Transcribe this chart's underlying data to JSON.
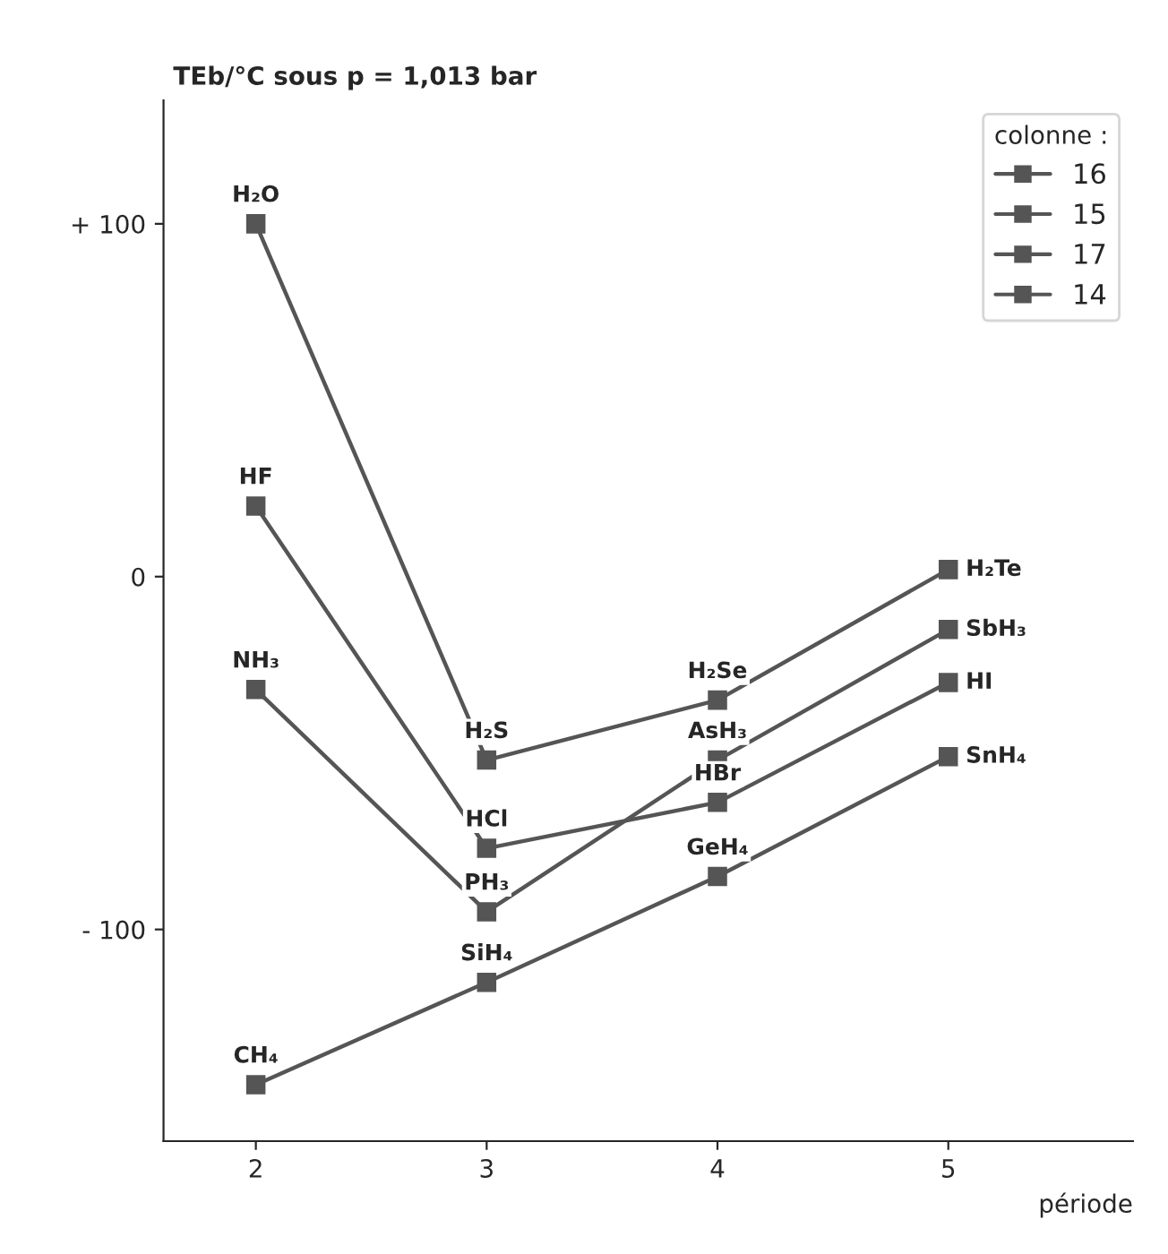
{
  "chart_data": {
    "type": "line",
    "ylabel": "TEb/°C sous p = 1,013 bar",
    "xlabel": "période",
    "legend_title": "colonne :",
    "x": [
      2,
      3,
      4,
      5
    ],
    "series": [
      {
        "name": "16",
        "color": "#555555",
        "values": [
          100,
          -52,
          -35,
          2
        ]
      },
      {
        "name": "15",
        "color": "#555555",
        "values": [
          -32,
          -95,
          -52,
          -15
        ]
      },
      {
        "name": "17",
        "color": "#555555",
        "values": [
          20,
          -77,
          -64,
          -30
        ]
      },
      {
        "name": "14",
        "color": "#555555",
        "values": [
          -144,
          -115,
          -85,
          -51
        ]
      }
    ],
    "xlim": [
      1.6,
      5.8
    ],
    "ylim": [
      -160,
      135
    ],
    "xticks": [
      2,
      3,
      4,
      5
    ],
    "yticks": [
      {
        "value": 100,
        "label": "+ 100"
      },
      0,
      {
        "value": -100,
        "label": "- 100"
      }
    ],
    "annotations": [
      {
        "text": "H₂O",
        "x": 2,
        "y": 100
      },
      {
        "text": "HF",
        "x": 2,
        "y": 20
      },
      {
        "text": "NH₃",
        "x": 2,
        "y": -32
      },
      {
        "text": "CH₄",
        "x": 2,
        "y": -144
      },
      {
        "text": "H₂S",
        "x": 3,
        "y": -52
      },
      {
        "text": "HCl",
        "x": 3,
        "y": -77
      },
      {
        "text": "PH₃",
        "x": 3,
        "y": -95
      },
      {
        "text": "SiH₄",
        "x": 3,
        "y": -115
      },
      {
        "text": "H₂Se",
        "x": 4,
        "y": -35
      },
      {
        "text": "AsH₃",
        "x": 4,
        "y": -52
      },
      {
        "text": "HBr",
        "x": 4,
        "y": -64
      },
      {
        "text": "GeH₄",
        "x": 4,
        "y": -85
      },
      {
        "text": "H₂Te",
        "x": 5,
        "y": 2
      },
      {
        "text": "SbH₃",
        "x": 5,
        "y": -15
      },
      {
        "text": "HI",
        "x": 5,
        "y": -30
      },
      {
        "text": "SnH₄",
        "x": 5,
        "y": -51
      }
    ],
    "grid": false,
    "legend": "top right",
    "marker": "square",
    "line_style": "solid"
  }
}
